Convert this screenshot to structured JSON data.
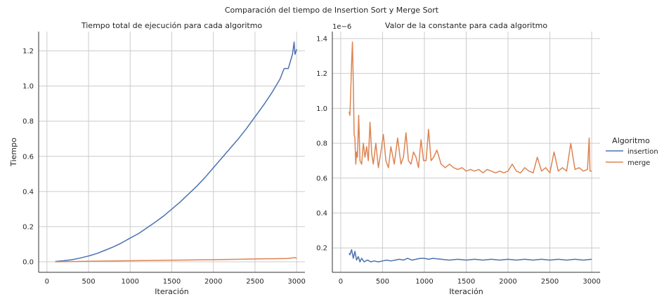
{
  "suptitle": "Comparación del tiempo de Insertion Sort y Merge Sort",
  "legend": {
    "title": "Algoritmo",
    "placement": "right-center",
    "entries": [
      {
        "name": "insertion",
        "color": "#4c72b0"
      },
      {
        "name": "merge",
        "color": "#dd8452"
      }
    ]
  },
  "chart_data": [
    {
      "type": "line",
      "title": "Tiempo total de ejecución para cada algoritmo",
      "xlabel": "Iteración",
      "ylabel": "Tiempo",
      "xlim": [
        -100,
        3100
      ],
      "ylim": [
        -0.06,
        1.31
      ],
      "xticks": [
        0,
        500,
        1000,
        1500,
        2000,
        2500,
        3000
      ],
      "yticks": [
        0.0,
        0.2,
        0.4,
        0.6,
        0.8,
        1.0,
        1.2
      ],
      "ytick_labels": [
        "0.0",
        "0.2",
        "0.4",
        "0.6",
        "0.8",
        "1.0",
        "1.2"
      ],
      "offset_text": "",
      "grid": true,
      "series": [
        {
          "name": "insertion",
          "color": "#4c72b0",
          "x": [
            100,
            200,
            300,
            400,
            500,
            600,
            700,
            800,
            900,
            1000,
            1100,
            1200,
            1300,
            1400,
            1500,
            1600,
            1700,
            1800,
            1900,
            2000,
            2100,
            2200,
            2300,
            2400,
            2500,
            2600,
            2700,
            2800,
            2850,
            2900,
            2950,
            2970,
            2980,
            3000
          ],
          "y": [
            0.002,
            0.006,
            0.012,
            0.021,
            0.033,
            0.047,
            0.066,
            0.085,
            0.108,
            0.135,
            0.16,
            0.193,
            0.225,
            0.26,
            0.3,
            0.34,
            0.385,
            0.43,
            0.48,
            0.535,
            0.59,
            0.645,
            0.7,
            0.76,
            0.825,
            0.89,
            0.96,
            1.04,
            1.1,
            1.1,
            1.18,
            1.25,
            1.18,
            1.21
          ]
        },
        {
          "name": "merge",
          "color": "#dd8452",
          "x": [
            100,
            500,
            1000,
            1500,
            2000,
            2500,
            2900,
            2980,
            3000
          ],
          "y": [
            0.0,
            0.003,
            0.006,
            0.009,
            0.012,
            0.016,
            0.019,
            0.024,
            0.019
          ]
        }
      ]
    },
    {
      "type": "line",
      "title": "Valor de la constante para cada algoritmo",
      "xlabel": "Iteración",
      "ylabel": "",
      "xlim": [
        -100,
        3100
      ],
      "ylim": [
        0.06,
        1.44
      ],
      "xticks": [
        0,
        500,
        1000,
        1500,
        2000,
        2500,
        3000
      ],
      "yticks": [
        0.2,
        0.4,
        0.6,
        0.8,
        1.0,
        1.2,
        1.4
      ],
      "ytick_labels": [
        "0.2",
        "0.4",
        "0.6",
        "0.8",
        "1.0",
        "1.2",
        "1.4"
      ],
      "offset_text": "1e−6",
      "grid": true,
      "series": [
        {
          "name": "insertion",
          "color": "#4c72b0",
          "x": [
            100,
            110,
            130,
            150,
            170,
            190,
            210,
            230,
            250,
            280,
            320,
            360,
            400,
            450,
            500,
            550,
            600,
            650,
            700,
            750,
            800,
            850,
            900,
            950,
            1000,
            1050,
            1100,
            1200,
            1300,
            1400,
            1500,
            1600,
            1700,
            1800,
            1900,
            2000,
            2100,
            2200,
            2300,
            2400,
            2500,
            2600,
            2700,
            2800,
            2900,
            3000
          ],
          "y": [
            0.17,
            0.16,
            0.19,
            0.14,
            0.18,
            0.13,
            0.15,
            0.12,
            0.14,
            0.12,
            0.13,
            0.12,
            0.125,
            0.12,
            0.125,
            0.13,
            0.125,
            0.13,
            0.135,
            0.13,
            0.14,
            0.13,
            0.135,
            0.14,
            0.14,
            0.135,
            0.14,
            0.135,
            0.13,
            0.135,
            0.13,
            0.135,
            0.13,
            0.135,
            0.13,
            0.135,
            0.13,
            0.135,
            0.13,
            0.135,
            0.13,
            0.135,
            0.13,
            0.135,
            0.13,
            0.135
          ]
        },
        {
          "name": "merge",
          "color": "#dd8452",
          "x": [
            100,
            110,
            120,
            130,
            140,
            150,
            160,
            170,
            180,
            190,
            200,
            215,
            230,
            250,
            270,
            290,
            310,
            330,
            350,
            370,
            390,
            420,
            450,
            480,
            510,
            540,
            570,
            600,
            640,
            680,
            720,
            750,
            780,
            810,
            840,
            870,
            900,
            930,
            960,
            990,
            1020,
            1050,
            1080,
            1110,
            1150,
            1200,
            1250,
            1300,
            1350,
            1400,
            1450,
            1500,
            1550,
            1600,
            1650,
            1700,
            1750,
            1800,
            1850,
            1900,
            1950,
            2000,
            2050,
            2100,
            2150,
            2200,
            2250,
            2300,
            2350,
            2400,
            2450,
            2500,
            2550,
            2600,
            2650,
            2700,
            2750,
            2800,
            2850,
            2900,
            2950,
            2970,
            2980,
            3000
          ],
          "y": [
            0.98,
            0.96,
            1.1,
            1.26,
            1.38,
            1.15,
            0.85,
            0.83,
            0.68,
            0.75,
            0.72,
            0.96,
            0.7,
            0.68,
            0.8,
            0.72,
            0.78,
            0.7,
            0.92,
            0.74,
            0.68,
            0.8,
            0.66,
            0.75,
            0.85,
            0.7,
            0.66,
            0.78,
            0.68,
            0.83,
            0.68,
            0.72,
            0.86,
            0.7,
            0.68,
            0.75,
            0.72,
            0.66,
            0.82,
            0.7,
            0.7,
            0.88,
            0.7,
            0.72,
            0.76,
            0.68,
            0.66,
            0.68,
            0.66,
            0.65,
            0.66,
            0.64,
            0.65,
            0.64,
            0.65,
            0.63,
            0.65,
            0.64,
            0.63,
            0.64,
            0.63,
            0.64,
            0.68,
            0.64,
            0.63,
            0.66,
            0.64,
            0.63,
            0.72,
            0.64,
            0.66,
            0.63,
            0.75,
            0.64,
            0.66,
            0.64,
            0.8,
            0.65,
            0.66,
            0.64,
            0.65,
            0.83,
            0.64,
            0.64
          ]
        }
      ]
    }
  ]
}
